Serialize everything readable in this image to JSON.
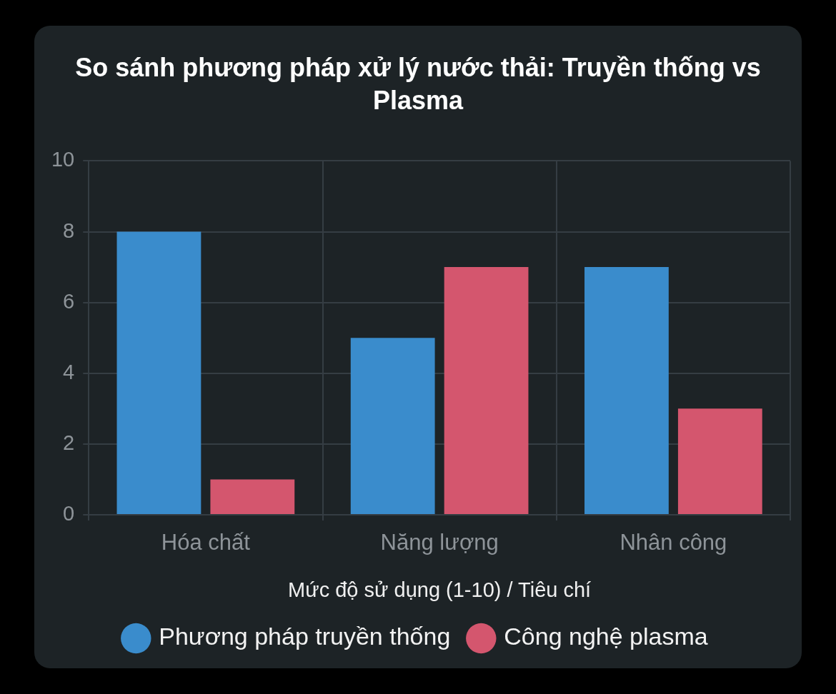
{
  "chart_data": {
    "type": "bar",
    "title": "So sánh phương pháp xử lý nước thải: Truyền thống vs Plasma",
    "xlabel": "Mức độ sử dụng (1-10) / Tiêu chí",
    "categories": [
      "Hóa chất",
      "Năng lượng",
      "Nhân công"
    ],
    "series": [
      {
        "name": "Phương pháp truyền thống",
        "color": "#3a8ccc",
        "values": [
          8,
          5,
          7
        ]
      },
      {
        "name": "Công nghệ plasma",
        "color": "#d4566e",
        "values": [
          1,
          7,
          3
        ]
      }
    ],
    "ylim": [
      0,
      10
    ],
    "yticks": [
      0,
      2,
      4,
      6,
      8,
      10
    ],
    "grid": true,
    "legend": "bottom"
  }
}
